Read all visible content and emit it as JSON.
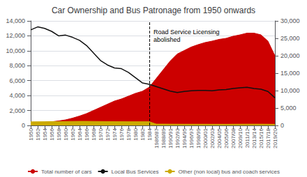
{
  "chart_data": {
    "type": "line",
    "title": "Car Ownership and Bus Patronage from 1950 onwards",
    "categories": [
      "1950",
      "1952",
      "1954",
      "1956",
      "1958",
      "1960",
      "1962",
      "1964",
      "1966",
      "1968",
      "1970",
      "1972",
      "1974",
      "1976",
      "1978",
      "1980",
      "1982",
      "1984",
      "1986/87",
      "1988/89",
      "1990/91",
      "1992/93",
      "1994/95",
      "1996/97",
      "1998/99",
      "2000/01",
      "2002/03",
      "2004/05",
      "2005/06",
      "2007/08",
      "2009/10",
      "2011/12",
      "2013/14",
      "2015/16",
      "2017/18",
      "2019/20"
    ],
    "series": [
      {
        "name": "Total number of cars",
        "type": "area",
        "axis": "y2",
        "color": "#cc0000",
        "values": [
          600,
          750,
          900,
          1050,
          1300,
          1600,
          2100,
          2700,
          3400,
          4300,
          5200,
          6100,
          7000,
          7600,
          8400,
          9200,
          9800,
          11000,
          13500,
          16000,
          18500,
          20500,
          21500,
          22500,
          23200,
          23800,
          24200,
          24700,
          25000,
          25600,
          26000,
          26500,
          26500,
          26000,
          24200,
          20000
        ]
      },
      {
        "name": "Local Bus Services",
        "type": "line",
        "color": "#111111",
        "values": [
          12800,
          13200,
          13000,
          12600,
          12000,
          12100,
          11800,
          11400,
          10700,
          9700,
          8700,
          8100,
          7700,
          7600,
          7100,
          6400,
          5700,
          5500,
          5200,
          4900,
          4600,
          4400,
          4550,
          4650,
          4700,
          4700,
          4650,
          4750,
          4800,
          4950,
          5050,
          5100,
          4950,
          4850,
          4550,
          3700
        ]
      },
      {
        "name": "Other (non local) bus and coach services",
        "type": "area",
        "color": "#ccaa00",
        "values": [
          480,
          490,
          500,
          510,
          520,
          530,
          540,
          550,
          550,
          540,
          530,
          520,
          510,
          505,
          500,
          500,
          500,
          500,
          180,
          180,
          175,
          170,
          165,
          165,
          165,
          165,
          160,
          160,
          158,
          165,
          170,
          175,
          175,
          175,
          165,
          155
        ]
      }
    ],
    "ylim": [
      0,
      14000
    ],
    "yticks": [
      0,
      {
        "value": 2000,
        "label": "2,000"
      },
      {
        "value": 4000,
        "label": "4,000"
      },
      {
        "value": 6000,
        "label": "6,000"
      },
      {
        "value": 8000,
        "label": "8,000"
      },
      {
        "value": 10000,
        "label": "10,000"
      },
      {
        "value": 12000,
        "label": "12,000"
      },
      {
        "value": 14000,
        "label": "14,000"
      }
    ],
    "y2lim": [
      0,
      30000
    ],
    "y2ticks": [
      0,
      {
        "value": 5000,
        "label": "5,000"
      },
      {
        "value": 10000,
        "label": "10,000"
      },
      {
        "value": 15000,
        "label": "15,000"
      },
      {
        "value": 20000,
        "label": "20,000"
      },
      {
        "value": 25000,
        "label": "25,000"
      },
      {
        "value": 30000,
        "label": "30,000"
      }
    ],
    "grid": true,
    "legend": "bottom",
    "annotations": [
      {
        "text": "Road Service Licensing\nabolished",
        "x": "1984",
        "y": 13000,
        "line_style": "dashed"
      }
    ]
  }
}
